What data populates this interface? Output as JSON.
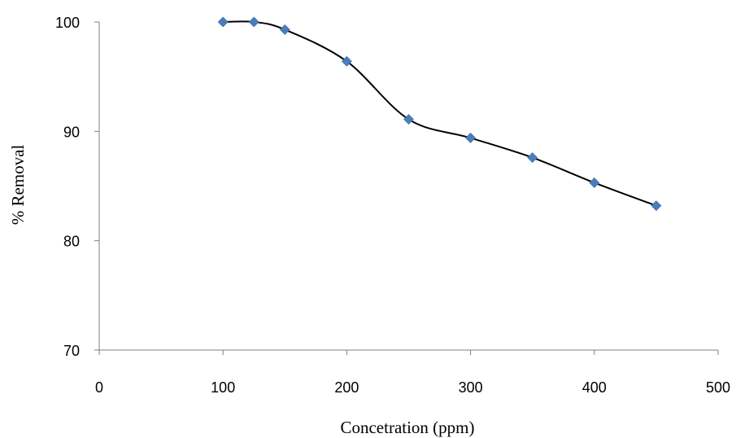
{
  "chart_data": {
    "type": "scatter",
    "title": "",
    "xlabel": "Concetration (ppm)",
    "ylabel": "% Removal",
    "xlim": [
      0,
      500
    ],
    "ylim": [
      70,
      100
    ],
    "xticks": [
      "0",
      "100",
      "200",
      "300",
      "400",
      "500"
    ],
    "yticks": [
      "70",
      "80",
      "90",
      "100"
    ],
    "grid": false,
    "legend": "none",
    "smoothed_line": true,
    "marker": "diamond",
    "colors": {
      "marker": "#4a7ebb",
      "line": "#000000",
      "axis": "#7f7f7f"
    },
    "series": [
      {
        "x": [
          100,
          125,
          150,
          200,
          250,
          300,
          350,
          400,
          450
        ],
        "y": [
          100,
          100,
          99.3,
          96.4,
          91.1,
          89.4,
          87.6,
          85.3,
          83.2
        ]
      }
    ]
  }
}
